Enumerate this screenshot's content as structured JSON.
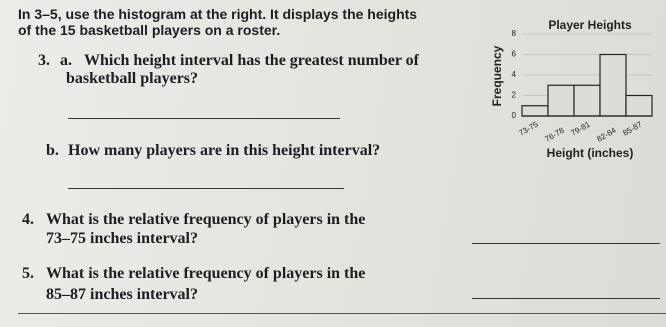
{
  "intro": [
    "In 3–5, use the histogram at the right. It displays the heights",
    "of the 15 basketball players on a roster."
  ],
  "questions": [
    {
      "number": "3.",
      "part": "a.",
      "lines": [
        "Which height interval has the greatest number of",
        "basketball players?"
      ]
    },
    {
      "part": "b.",
      "lines": [
        "How many players are in this height interval?"
      ]
    },
    {
      "number": "4.",
      "lines": [
        "What is the relative frequency of players in the",
        "73–75 inches interval?"
      ]
    },
    {
      "number": "5.",
      "lines": [
        "What is the relative frequency of players in the",
        "85–87 inches interval?"
      ]
    }
  ],
  "chart_data": {
    "type": "bar",
    "title": "Player Heights",
    "xlabel": "Height (inches)",
    "ylabel": "Frequency",
    "categories": [
      "73-75",
      "76-78",
      "79-81",
      "82-84",
      "85-87"
    ],
    "values": [
      1,
      3,
      3,
      6,
      2
    ],
    "ylim": [
      0,
      8
    ],
    "yticks": [
      0,
      2,
      4,
      6,
      8
    ],
    "grid": true,
    "color": "#dcdcd8"
  }
}
